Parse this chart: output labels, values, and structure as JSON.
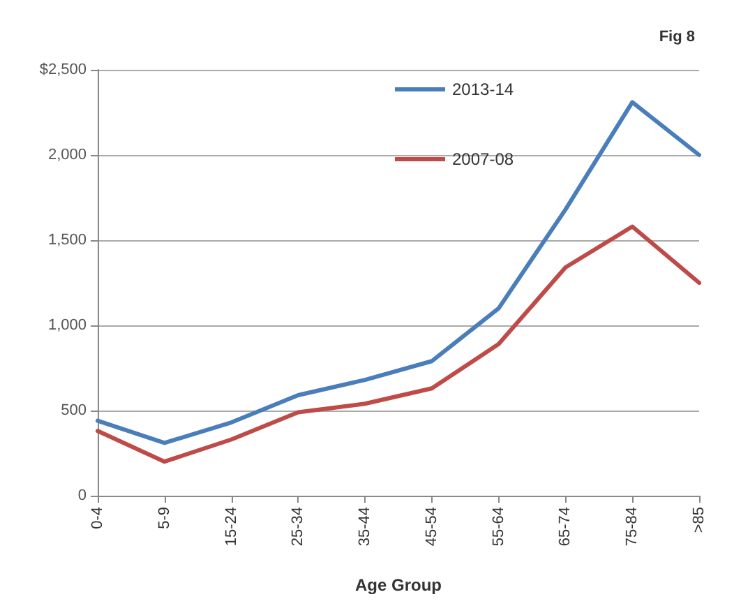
{
  "chart_data": {
    "type": "line",
    "xlabel": "Age Group",
    "annotations": [
      "Fig 8"
    ],
    "categories": [
      "0-4",
      "5-9",
      "15-24",
      "25-34",
      "35-44",
      "45-54",
      "55-64",
      "65-74",
      "75-84",
      ">85"
    ],
    "series": [
      {
        "name": "2013-14",
        "color": "#4a7ebb",
        "values": [
          440,
          310,
          430,
          590,
          680,
          790,
          1100,
          1680,
          2310,
          2000
        ]
      },
      {
        "name": "2007-08",
        "color": "#be4b48",
        "values": [
          380,
          200,
          330,
          490,
          540,
          630,
          890,
          1340,
          1580,
          1250
        ]
      }
    ],
    "ylim": [
      0,
      2500
    ],
    "yticks": [
      0,
      500,
      {
        "value": 1000,
        "label": "1,000"
      },
      {
        "value": 1500,
        "label": "1,500"
      },
      {
        "value": 2000,
        "label": "2,000"
      },
      {
        "value": 2500,
        "label": "$2,500"
      }
    ],
    "grid": "y",
    "legend": "top right",
    "marker": "none",
    "line_style": "solid"
  }
}
